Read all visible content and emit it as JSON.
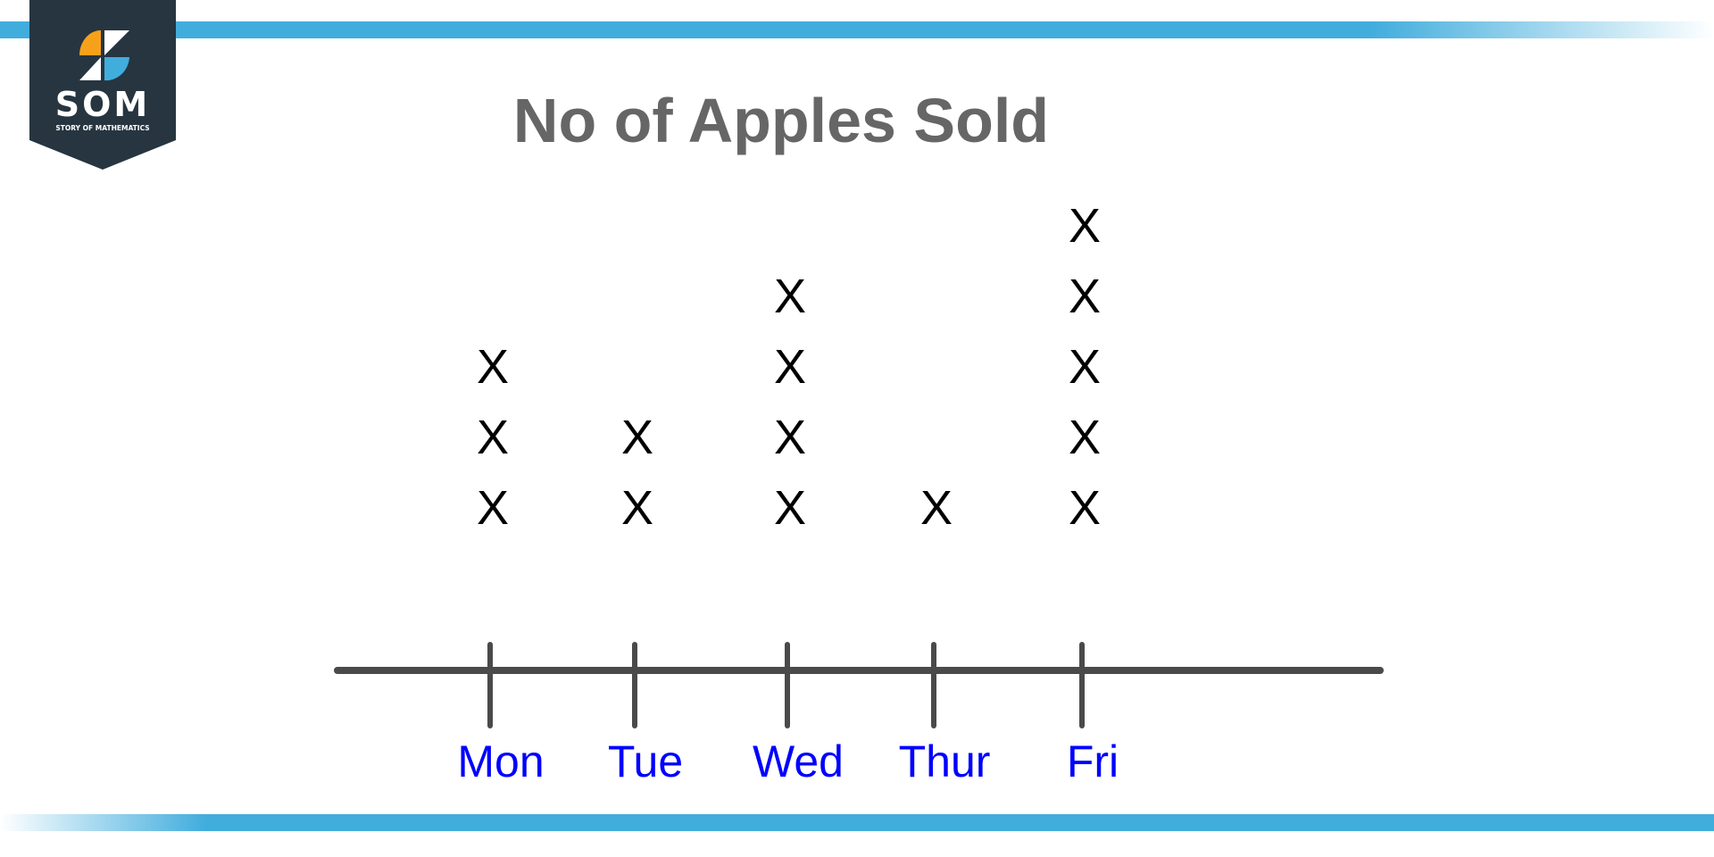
{
  "logo": {
    "text": "SOM",
    "subtext": "STORY OF MATHEMATICS"
  },
  "colors": {
    "accent_bar": "#41addd",
    "logo_bg": "#263540",
    "logo_orange": "#f7a11a",
    "label_color": "#0000ff",
    "axis_color": "#4a4a4a",
    "title_color": "#666666"
  },
  "chart_data": {
    "type": "dot-plot",
    "title": "No of Apples Sold",
    "marker": "X",
    "categories": [
      "Mon",
      "Tue",
      "Wed",
      "Thur",
      "Fri"
    ],
    "values": [
      3,
      2,
      4,
      1,
      5
    ],
    "grid": false
  }
}
